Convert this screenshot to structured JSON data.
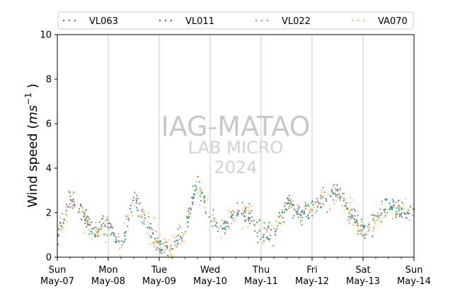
{
  "chart_data": {
    "type": "scatter",
    "ylabel_main": "Wind speed (",
    "ylabel_unit_base": "ms",
    "ylabel_unit_exp": "−1",
    "ylabel_close": " )",
    "ylim": [
      0,
      10
    ],
    "yticks": [
      "0",
      "2",
      "4",
      "6",
      "8",
      "10"
    ],
    "xlim_days": [
      0,
      7
    ],
    "xticks": [
      {
        "day": 0,
        "weekday": "Sun",
        "date": "May-07"
      },
      {
        "day": 1,
        "weekday": "Mon",
        "date": "May-08"
      },
      {
        "day": 2,
        "weekday": "Tue",
        "date": "May-09"
      },
      {
        "day": 3,
        "weekday": "Wed",
        "date": "May-10"
      },
      {
        "day": 4,
        "weekday": "Thu",
        "date": "May-11"
      },
      {
        "day": 5,
        "weekday": "Fri",
        "date": "May-12"
      },
      {
        "day": 6,
        "weekday": "Sat",
        "date": "May-13"
      },
      {
        "day": 7,
        "weekday": "Sun",
        "date": "May-14"
      }
    ],
    "grid": "vertical",
    "legend_position": "top",
    "watermark": [
      "IAG-MATAO",
      "LAB MICRO",
      "2024"
    ],
    "series": [
      {
        "name": "VL063",
        "color": "#2ca05a"
      },
      {
        "name": "VL011",
        "color": "#3a6fb0"
      },
      {
        "name": "VL022",
        "color": "#c97aa8"
      },
      {
        "name": "VA070",
        "color": "#ffb347"
      }
    ],
    "typical_profile": {
      "hours": [
        0,
        6,
        12,
        18,
        24,
        30,
        36,
        42,
        48,
        54,
        60,
        66,
        72,
        78,
        84,
        90,
        96,
        102,
        108,
        114,
        120,
        126,
        132,
        138,
        144,
        150,
        156,
        162,
        168
      ],
      "wind_speed": [
        1.0,
        2.6,
        1.9,
        1.0,
        1.5,
        0.4,
        2.7,
        1.6,
        0.5,
        0.3,
        1.2,
        3.4,
        1.7,
        1.4,
        1.9,
        2.0,
        1.0,
        1.1,
        2.5,
        2.0,
        2.2,
        2.6,
        3.0,
        2.0,
        1.2,
        1.7,
        2.4,
        2.0,
        1.9
      ]
    }
  }
}
